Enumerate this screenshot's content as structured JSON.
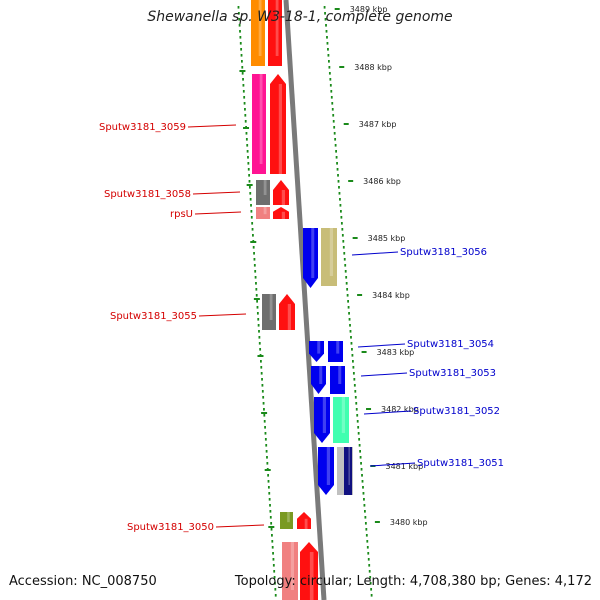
{
  "title": "Shewanella sp. W3-18-1, complete genome",
  "accession": "Accession: NC_008750",
  "summary": "Topology: circular; Length: 4,708,380 bp; Genes: 4,172",
  "colors": {
    "backbone": "#7a7a7a",
    "dotted_ring": "#1a8a1a",
    "forward_label": "#d40000",
    "reverse_label": "#0000cc",
    "red": "#ff1010",
    "orange": "#ff8c00",
    "pink": "#ff1493",
    "gray": "#6e6e6e",
    "salmon": "#f08080",
    "blue": "#0000ee",
    "khaki": "#c8bd78",
    "green": "#7a9a22",
    "aquamarine": "#40ffb0",
    "navy": "#101080",
    "silver": "#c0c0c0"
  },
  "ticks": [
    {
      "label": "3489 kbp",
      "kbp": 3489
    },
    {
      "label": "3488 kbp",
      "kbp": 3488
    },
    {
      "label": "3487 kbp",
      "kbp": 3487
    },
    {
      "label": "3486 kbp",
      "kbp": 3486
    },
    {
      "label": "3485 kbp",
      "kbp": 3485
    },
    {
      "label": "3484 kbp",
      "kbp": 3484
    },
    {
      "label": "3483 kbp",
      "kbp": 3483
    },
    {
      "label": "3482 kbp",
      "kbp": 3482
    },
    {
      "label": "3481 kbp",
      "kbp": 3481
    },
    {
      "label": "3480 kbp",
      "kbp": 3480
    }
  ],
  "forward_labels": [
    {
      "name": "Sputw3181_3059"
    },
    {
      "name": "Sputw3181_3058"
    },
    {
      "name": "rpsU"
    },
    {
      "name": "Sputw3181_3055"
    },
    {
      "name": "Sputw3181_3050"
    }
  ],
  "reverse_labels": [
    {
      "name": "Sputw3181_3056"
    },
    {
      "name": "Sputw3181_3054"
    },
    {
      "name": "Sputw3181_3053"
    },
    {
      "name": "Sputw3181_3052"
    },
    {
      "name": "Sputw3181_3051"
    }
  ]
}
